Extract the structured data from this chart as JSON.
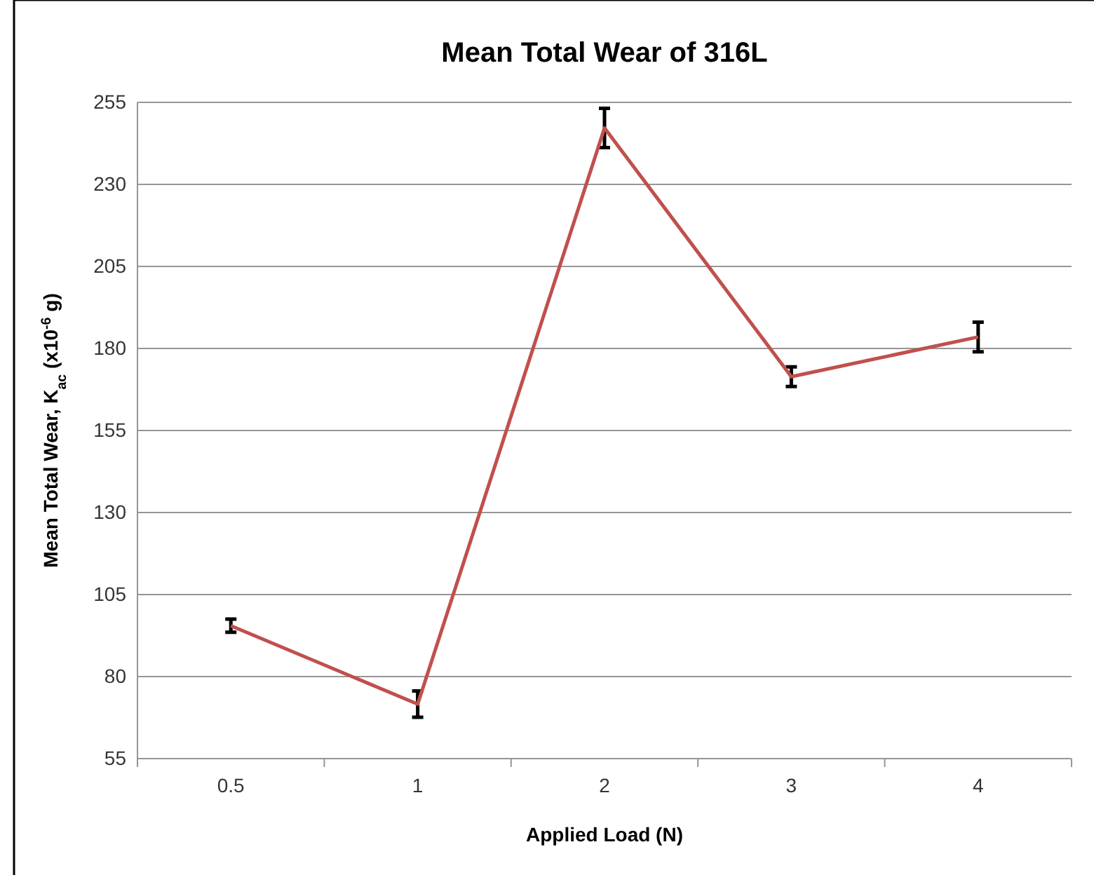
{
  "chart_data": {
    "type": "line",
    "title": "Mean Total Wear of 316L",
    "xlabel": "Applied Load (N)",
    "ylabel": "Mean Total Wear, K$_{ac}$  (x10$^{-6}$ g)",
    "categories": [
      "0.5",
      "1",
      "2",
      "3",
      "4"
    ],
    "series": [
      {
        "color": "#c0504d",
        "values": [
          95.5,
          71.6,
          247.2,
          171.4,
          183.5
        ],
        "errors": [
          2,
          4,
          6,
          3,
          4.5
        ]
      }
    ],
    "ylim": [
      55,
      255
    ],
    "yticks": [
      55,
      80,
      105,
      130,
      155,
      180,
      205,
      230,
      255
    ],
    "grid": "y",
    "marker": "none",
    "line_style": "solid"
  }
}
